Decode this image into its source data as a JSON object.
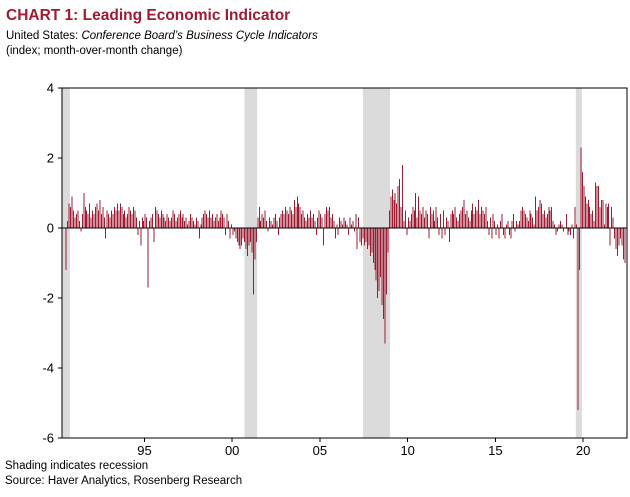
{
  "header": {
    "title": "CHART 1: Leading Economic Indicator",
    "subtitle_prefix": "United States: ",
    "subtitle_italic": "Conference Board’s Business Cycle Indicators",
    "subtitle_line2": "(index; month-over-month change)"
  },
  "footer": {
    "note": "Shading indicates recession",
    "source": "Source: Haver Analytics, Rosenberg Research"
  },
  "chart_data": {
    "type": "bar",
    "title": "CHART 1: Leading Economic Indicator",
    "subtitle": "United States: Conference Board’s Business Cycle Indicators",
    "units": "index; month-over-month change",
    "series_name": "Leading Economic Indicator m/m change",
    "frequency": "monthly",
    "x_start": "1991-01",
    "x_end": "2022-11",
    "x_start_year": 1991,
    "x_domain": [
      1990.8,
      2023.0
    ],
    "ylim": [
      -6,
      4
    ],
    "y_ticks": [
      4,
      2,
      0,
      -2,
      -4,
      -6
    ],
    "x_tick_years": [
      1995,
      2000,
      2005,
      2010,
      2015,
      2020
    ],
    "x_tick_labels": [
      "95",
      "00",
      "05",
      "10",
      "15",
      "20"
    ],
    "grid": false,
    "legend": false,
    "bar_color": "#9E1B32",
    "recession_color": "#DBDBDB",
    "recessions": [
      [
        1990.8,
        1991.25
      ],
      [
        2001.2,
        2001.92
      ],
      [
        2007.95,
        2009.5
      ],
      [
        2020.08,
        2020.42
      ]
    ],
    "values": [
      -1.2,
      0.2,
      0.7,
      0.6,
      0.9,
      0.5,
      0.3,
      0.4,
      0.5,
      0.2,
      -0.1,
      0.4,
      1.0,
      0.6,
      0.5,
      0.4,
      0.7,
      0.3,
      0.5,
      0.4,
      0.6,
      0.7,
      0.5,
      0.8,
      0.4,
      0.6,
      0.3,
      -0.3,
      0.5,
      0.4,
      0.3,
      0.5,
      0.4,
      0.6,
      0.5,
      0.7,
      0.5,
      0.7,
      0.6,
      0.4,
      0.5,
      0.3,
      0.4,
      0.6,
      0.5,
      0.4,
      0.6,
      0.5,
      0.3,
      -0.2,
      0.2,
      -0.5,
      0.3,
      0.2,
      0.4,
      0.3,
      -1.7,
      0.2,
      0.3,
      0.4,
      -0.4,
      0.6,
      0.5,
      0.4,
      0.3,
      0.5,
      0.4,
      0.3,
      0.2,
      0.4,
      0.3,
      0.2,
      0.3,
      0.5,
      0.4,
      0.2,
      0.3,
      0.4,
      0.5,
      0.3,
      0.4,
      0.2,
      0.3,
      0.1,
      0.2,
      0.4,
      0.3,
      0.2,
      0.1,
      0.3,
      0.2,
      -0.3,
      0.1,
      0.3,
      0.4,
      0.5,
      0.4,
      0.3,
      0.5,
      0.3,
      0.4,
      0.2,
      0.3,
      0.4,
      0.2,
      0.3,
      0.5,
      0.4,
      0.3,
      -0.2,
      0.4,
      0.2,
      -0.3,
      0.1,
      -0.2,
      -0.1,
      -0.3,
      -0.4,
      -0.5,
      -0.6,
      -0.5,
      -0.3,
      -0.4,
      -0.6,
      -0.8,
      -0.5,
      -0.4,
      -0.7,
      -1.9,
      -0.9,
      -0.4,
      0.3,
      0.6,
      0.2,
      0.4,
      0.3,
      0.5,
      0.2,
      -0.1,
      0.3,
      0.2,
      0.1,
      0.3,
      0.4,
      0.2,
      -0.2,
      0.3,
      0.4,
      0.5,
      0.4,
      0.6,
      0.5,
      0.4,
      0.6,
      0.5,
      0.4,
      0.8,
      0.6,
      0.9,
      0.7,
      0.6,
      0.4,
      0.5,
      0.3,
      0.2,
      0.4,
      0.3,
      0.5,
      0.3,
      0.4,
      0.2,
      -0.2,
      0.3,
      0.5,
      0.4,
      0.3,
      -0.5,
      0.4,
      0.6,
      0.5,
      0.6,
      0.3,
      0.4,
      0.2,
      -0.3,
      0.1,
      -0.2,
      0.3,
      0.2,
      0.1,
      0.3,
      0.2,
      0.1,
      -0.2,
      0.3,
      0.1,
      0.2,
      -0.1,
      0.4,
      -0.6,
      0.3,
      -0.4,
      -0.5,
      -0.3,
      -0.5,
      -0.4,
      -0.6,
      -0.5,
      -0.8,
      -0.7,
      -1.0,
      -1.2,
      -1.5,
      -2.0,
      -1.8,
      -1.4,
      -2.2,
      -2.6,
      -3.3,
      -1.9,
      -0.7,
      0.5,
      0.9,
      1.1,
      0.8,
      1.0,
      0.7,
      1.2,
      1.4,
      0.6,
      1.8,
      0.2,
      0.5,
      -0.2,
      0.3,
      0.2,
      0.4,
      0.6,
      0.5,
      1.0,
      0.3,
      0.9,
      0.5,
      0.4,
      0.6,
      0.3,
      0.5,
      0.4,
      -0.3,
      0.6,
      0.4,
      0.5,
      0.2,
      0.6,
      0.3,
      -0.2,
      0.4,
      -0.3,
      0.5,
      -0.2,
      0.3,
      0.2,
      -0.4,
      0.4,
      0.5,
      0.4,
      0.6,
      0.3,
      0.2,
      0.4,
      0.5,
      0.6,
      0.8,
      0.4,
      0.5,
      0.3,
      0.2,
      0.5,
      0.7,
      0.4,
      0.6,
      0.5,
      0.8,
      0.4,
      0.6,
      0.5,
      0.4,
      0.6,
      0.2,
      -0.2,
      0.3,
      -0.3,
      0.4,
      0.2,
      -0.2,
      0.1,
      -0.3,
      0.2,
      0.4,
      -0.2,
      -0.3,
      0.1,
      0.2,
      -0.2,
      -0.3,
      0.2,
      0.4,
      -0.1,
      0.2,
      0.1,
      0.2,
      0.5,
      0.6,
      0.5,
      0.4,
      0.3,
      0.2,
      0.5,
      0.4,
      0.3,
      0.1,
      0.9,
      0.5,
      0.6,
      0.8,
      0.7,
      0.4,
      0.5,
      0.3,
      0.4,
      0.6,
      0.5,
      0.6,
      0.2,
      0.1,
      -0.2,
      -0.1,
      0.1,
      0.2,
      0.1,
      -0.1,
      0.0,
      0.4,
      -0.2,
      -0.1,
      -0.2,
      0.1,
      -0.3,
      0.6,
      0.1,
      -5.2,
      -1.2,
      2.3,
      1.6,
      1.2,
      0.9,
      0.7,
      0.8,
      0.6,
      0.4,
      0.5,
      0.2,
      1.3,
      1.2,
      1.2,
      0.6,
      0.8,
      0.8,
      0.1,
      0.7,
      0.6,
      0.7,
      -0.5,
      0.6,
      0.3,
      -0.3,
      -0.6,
      -0.8,
      -0.5,
      -0.3,
      -0.5,
      -0.9,
      -1.0
    ]
  }
}
